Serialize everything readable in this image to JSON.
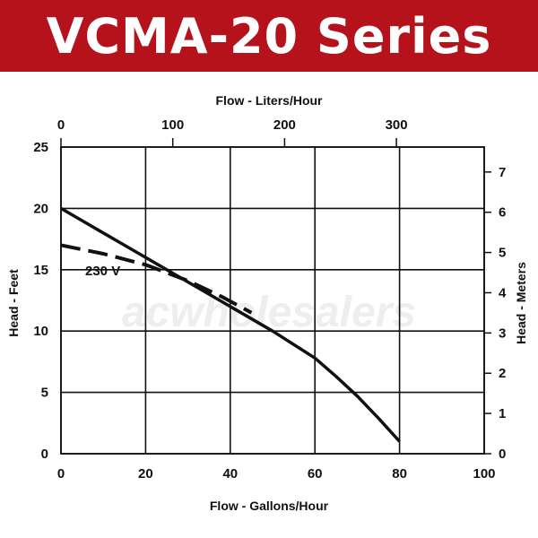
{
  "banner": {
    "title": "VCMA-20 Series",
    "color": "#b5121b"
  },
  "watermark": "acwholesalers",
  "chart_data": {
    "type": "line",
    "title": "",
    "xlabel": "Flow - Gallons/Hour",
    "ylabel": "Head - Feet",
    "x2label": "Flow - Liters/Hour",
    "y2label": "Head - Meters",
    "xlim": [
      0,
      100
    ],
    "ylim": [
      0,
      25
    ],
    "xticks": [
      "0",
      "20",
      "40",
      "60",
      "80",
      "100"
    ],
    "yticks": [
      "0",
      "5",
      "10",
      "15",
      "20",
      "25"
    ],
    "x2lim": [
      0,
      378.5
    ],
    "x2ticks": [
      "0",
      "100",
      "200",
      "300"
    ],
    "y2lim": [
      0,
      7.62
    ],
    "y2ticks": [
      "0",
      "1",
      "2",
      "3",
      "4",
      "5",
      "6",
      "7"
    ],
    "grid": true,
    "series": [
      {
        "style": "solid",
        "x": [
          0,
          10,
          20,
          30,
          40,
          50,
          60,
          65,
          70,
          75,
          80
        ],
        "y": [
          20,
          18,
          16,
          14,
          12,
          10,
          7.8,
          6.3,
          4.7,
          2.9,
          1
        ]
      },
      {
        "name": "230 V",
        "style": "dashed",
        "x": [
          0,
          10,
          20,
          30,
          38,
          45
        ],
        "y": [
          17,
          16.3,
          15.4,
          14.1,
          12.8,
          11.5
        ]
      }
    ],
    "annotations": [
      {
        "text": "230 V"
      }
    ]
  }
}
